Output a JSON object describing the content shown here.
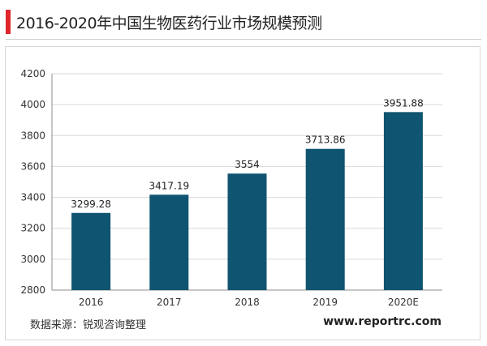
{
  "header": {
    "title": "2016-2020年中国生物医药行业市场规模预测"
  },
  "footer": {
    "source": "数据来源：锐观咨询整理",
    "website": "www.reportrc.com"
  },
  "colors": {
    "bar": "#0f5470",
    "accent": "#e0262b"
  },
  "chart_data": {
    "type": "bar",
    "title": "2016-2020年中国生物医药行业市场规模预测",
    "categories": [
      "2016",
      "2017",
      "2018",
      "2019",
      "2020E"
    ],
    "values": [
      3299.28,
      3417.19,
      3554,
      3713.86,
      3951.88
    ],
    "value_labels": [
      "3299.28",
      "3417.19",
      "3554",
      "3713.86",
      "3951.88"
    ],
    "xlabel": "",
    "ylabel": "",
    "ylim": [
      2800,
      4200
    ],
    "yticks": [
      "2800",
      "3000",
      "3200",
      "3400",
      "3600",
      "3800",
      "4000",
      "4200"
    ],
    "grid": true,
    "legend": "none"
  }
}
